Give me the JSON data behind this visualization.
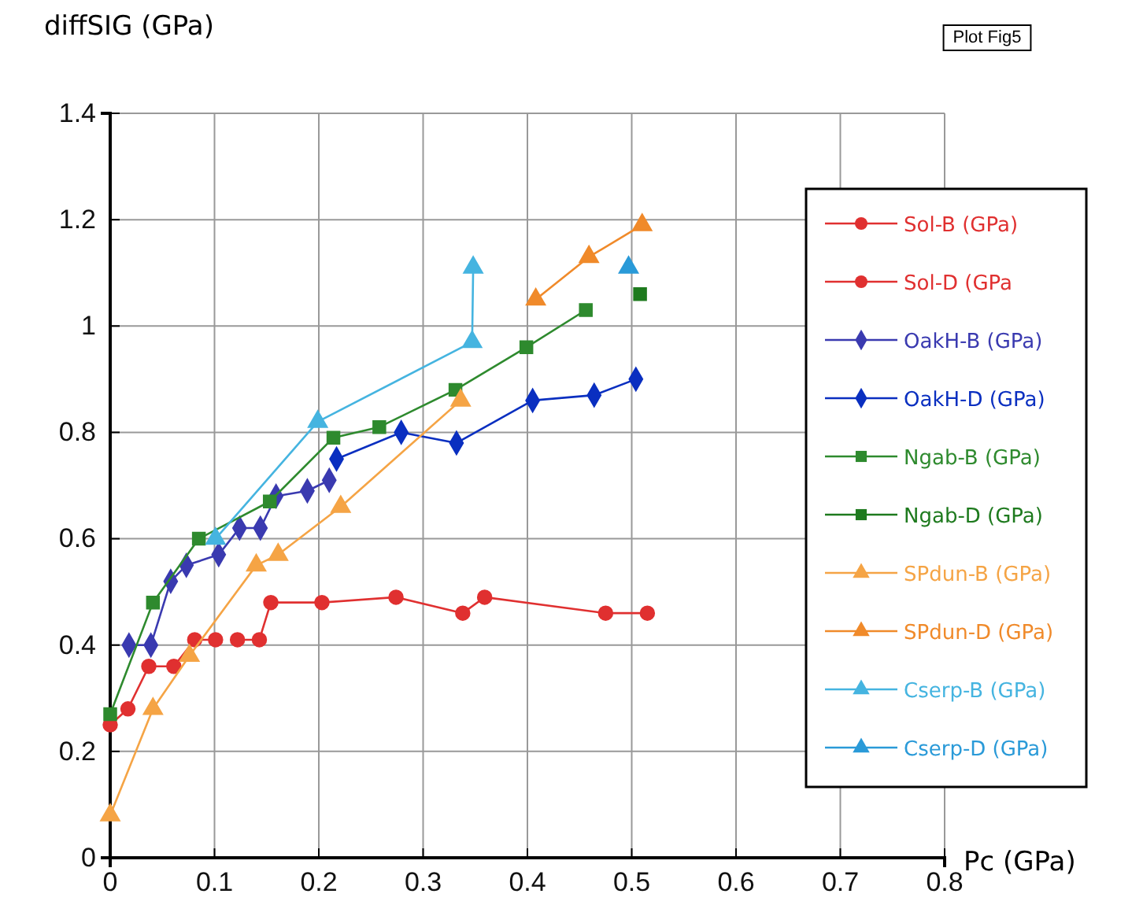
{
  "chart_data": {
    "type": "line",
    "ylabel": "diffSIG (GPa)",
    "xlabel": "Pc (GPa)",
    "annotations": [
      "Plot Fig5"
    ],
    "xlim": [
      0,
      0.8
    ],
    "xticks": [
      0,
      0.1,
      0.2,
      0.3,
      0.4,
      0.5,
      0.6,
      0.7,
      0.8
    ],
    "ylim": [
      0,
      1.4
    ],
    "yticks": [
      0,
      0.2,
      0.4,
      0.6,
      0.8,
      1,
      1.2,
      1.4
    ],
    "grid": true,
    "legend": "right",
    "line_style": "solid",
    "series": [
      {
        "name": "Sol-B (GPa)",
        "color": "#e03030",
        "marker": "circle",
        "x": [
          0,
          0.017,
          0.037,
          0.061,
          0.081,
          0.101
        ],
        "values": [
          0.25,
          0.28,
          0.36,
          0.36,
          0.41,
          0.41
        ]
      },
      {
        "name": "Sol-D (GPa",
        "color": "#e03030",
        "marker": "circle",
        "x": [
          0.122,
          0.143,
          0.154,
          0.203,
          0.274,
          0.338,
          0.359,
          0.475,
          0.515
        ],
        "values": [
          0.41,
          0.41,
          0.48,
          0.48,
          0.49,
          0.46,
          0.49,
          0.46,
          0.46
        ]
      },
      {
        "name": "OakH-B (GPa)",
        "color": "#3a3ab0",
        "marker": "diamond",
        "x": [
          0.018,
          0.039,
          0.058,
          0.073,
          0.104,
          0.124,
          0.144,
          0.159,
          0.189,
          0.21
        ],
        "values": [
          0.4,
          0.4,
          0.52,
          0.55,
          0.57,
          0.62,
          0.62,
          0.68,
          0.69,
          0.71
        ]
      },
      {
        "name": "OakH-D (GPa)",
        "color": "#0a2fc0",
        "marker": "diamond",
        "x": [
          0.217,
          0.279,
          0.332,
          0.405,
          0.464,
          0.504
        ],
        "values": [
          0.75,
          0.8,
          0.78,
          0.86,
          0.87,
          0.9
        ]
      },
      {
        "name": "Ngab-B (GPa)",
        "color": "#2e8a2e",
        "marker": "square",
        "x": [
          0,
          0.041,
          0.085,
          0.153,
          0.214,
          0.258,
          0.331,
          0.399,
          0.456
        ],
        "values": [
          0.27,
          0.48,
          0.6,
          0.67,
          0.79,
          0.81,
          0.88,
          0.96,
          1.03
        ]
      },
      {
        "name": "Ngab-D (GPa)",
        "color": "#1e7a1e",
        "marker": "square",
        "x": [
          0.508
        ],
        "values": [
          1.06
        ]
      },
      {
        "name": "SPdun-B (GPa)",
        "color": "#f5a445",
        "marker": "triangle",
        "x": [
          0,
          0.041,
          0.076,
          0.14,
          0.161,
          0.221,
          0.336
        ],
        "values": [
          0.08,
          0.28,
          0.38,
          0.55,
          0.57,
          0.66,
          0.86
        ]
      },
      {
        "name": "SPdun-D (GPa)",
        "color": "#f08a2a",
        "marker": "triangle",
        "x": [
          0.408,
          0.459,
          0.51
        ],
        "values": [
          1.05,
          1.13,
          1.19
        ]
      },
      {
        "name": "Cserp-B (GPa)",
        "color": "#45b4e0",
        "marker": "triangle",
        "x": [
          0.101,
          0.199,
          0.347,
          0.348
        ],
        "values": [
          0.6,
          0.82,
          0.97,
          1.11
        ]
      },
      {
        "name": "Cserp-D (GPa)",
        "color": "#2a9ad8",
        "marker": "triangle",
        "x": [
          0.497
        ],
        "values": [
          1.11
        ]
      }
    ]
  }
}
